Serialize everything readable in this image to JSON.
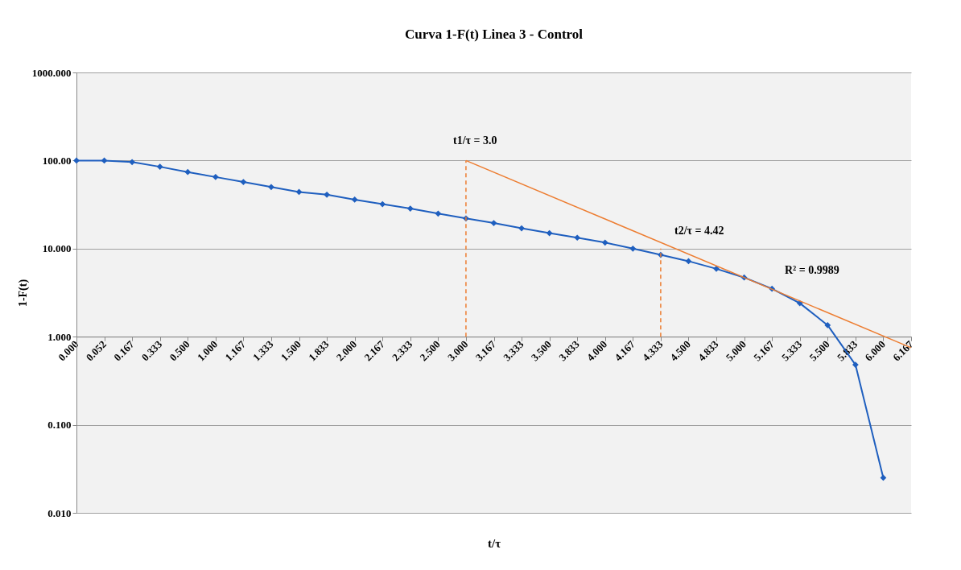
{
  "chart_data": {
    "type": "line",
    "title": "Curva 1-F(t) Linea 3 - Control",
    "xlabel": "t/τ",
    "ylabel": "1-F(t)",
    "categories": [
      "0.000",
      "0.052",
      "0.167",
      "0.333",
      "0.500",
      "1.000",
      "1.167",
      "1.333",
      "1.500",
      "1.833",
      "2.000",
      "2.167",
      "2.333",
      "2.500",
      "3.000",
      "3.167",
      "3.333",
      "3.500",
      "3.833",
      "4.000",
      "4.167",
      "4.333",
      "4.500",
      "4.833",
      "5.000",
      "5.167",
      "5.333",
      "5.500",
      "5.833",
      "6.000",
      "6.167"
    ],
    "series": [
      {
        "color": "#1f5fbf",
        "marker": "diamond",
        "values": [
          100,
          100,
          96,
          85,
          74,
          65,
          57,
          50,
          44,
          41,
          36,
          32,
          28.5,
          25,
          22,
          19.5,
          17,
          15,
          13.3,
          11.7,
          10,
          8.5,
          7.2,
          5.9,
          4.7,
          3.5,
          2.4,
          1.35,
          0.48,
          0.025,
          null
        ]
      },
      {
        "color": "#ed7d31",
        "marker": "none",
        "x": [
          "3.000",
          "6.167"
        ],
        "values": [
          100,
          0.75
        ]
      },
      {
        "color": "#ed7d31",
        "marker": "none",
        "line_style": "dashed",
        "x": [
          "3.000",
          "3.000"
        ],
        "values": [
          1,
          100
        ]
      },
      {
        "color": "#ed7d31",
        "marker": "none",
        "line_style": "dashed",
        "x": [
          "4.333",
          "4.333"
        ],
        "values": [
          1,
          10
        ]
      }
    ],
    "log": true,
    "ylim": [
      0.01,
      1000
    ],
    "yticks": [
      {
        "value": 0.01,
        "label": "0.010"
      },
      {
        "value": 0.1,
        "label": "0.100"
      },
      {
        "value": 1,
        "label": "1.000"
      },
      {
        "value": 10,
        "label": "10.000"
      },
      {
        "value": 100,
        "label": "100.00"
      },
      {
        "value": 1000,
        "label": "1000.000"
      }
    ],
    "grid": "y",
    "annotations": [
      "t1/τ  = 3.0",
      "t2/τ  = 4.42",
      "R² = 0.9989"
    ]
  }
}
